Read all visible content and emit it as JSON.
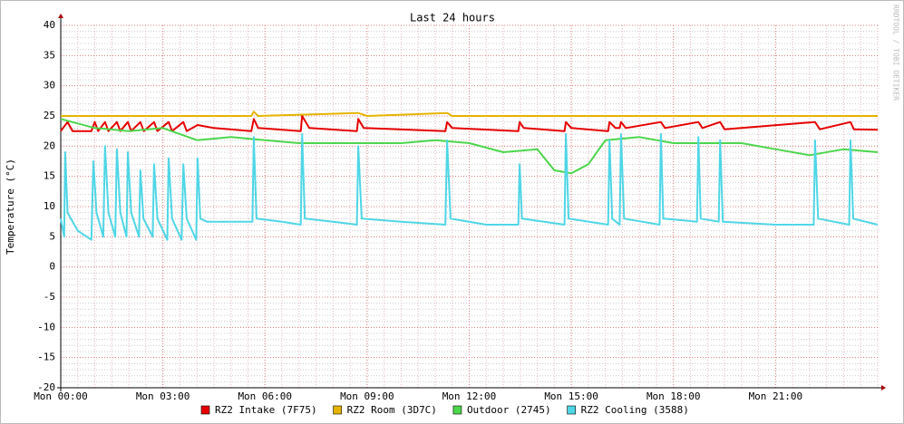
{
  "chart_data": {
    "type": "line",
    "title": "Last 24 hours",
    "y_label": "Temperature (°C)",
    "watermark": "RRDTOOL / TOBI OETIKER",
    "xlim": [
      0,
      24
    ],
    "ylim": [
      -20,
      40
    ],
    "xticks": [
      {
        "value": 0,
        "label": "Mon 00:00"
      },
      {
        "value": 3,
        "label": "Mon 03:00"
      },
      {
        "value": 6,
        "label": "Mon 06:00"
      },
      {
        "value": 9,
        "label": "Mon 09:00"
      },
      {
        "value": 12,
        "label": "Mon 12:00"
      },
      {
        "value": 15,
        "label": "Mon 15:00"
      },
      {
        "value": 18,
        "label": "Mon 18:00"
      },
      {
        "value": 21,
        "label": "Mon 21:00"
      }
    ],
    "yticks": [
      -20,
      -15,
      -10,
      -5,
      0,
      5,
      10,
      15,
      20,
      25,
      30,
      35,
      40
    ],
    "grid": true,
    "series": [
      {
        "name": "RZ2 Intake (7F75)",
        "color": "#e60000",
        "x": [
          0,
          0.2,
          0.35,
          0.9,
          1,
          1.1,
          1.3,
          1.4,
          1.65,
          1.75,
          1.97,
          2.07,
          2.34,
          2.44,
          2.74,
          2.84,
          3.17,
          3.27,
          3.6,
          3.7,
          4.02,
          4.5,
          5.6,
          5.67,
          5.8,
          7.05,
          7.09,
          7.3,
          8.7,
          8.74,
          8.9,
          11.3,
          11.35,
          11.5,
          13.44,
          13.48,
          13.6,
          14.8,
          14.84,
          15,
          16.08,
          16.12,
          16.3,
          16.42,
          16.46,
          16.6,
          17.63,
          17.75,
          18.73,
          18.85,
          19.37,
          19.5,
          22.16,
          22.3,
          23.2,
          23.3,
          24
        ],
        "values": [
          22.5,
          24,
          22.5,
          22.5,
          24,
          22.5,
          24,
          22.5,
          24,
          22.5,
          24,
          22.5,
          24,
          22.5,
          24,
          22.5,
          24,
          22.5,
          24,
          22.5,
          23.5,
          23,
          22.5,
          24.5,
          23,
          22.5,
          25,
          23,
          22.5,
          24.5,
          23,
          22.5,
          24,
          23,
          22.5,
          24,
          23,
          22.5,
          24,
          23,
          22.5,
          24,
          23,
          23,
          24,
          23,
          24,
          23,
          24,
          23,
          24,
          22.8,
          24,
          22.8,
          24,
          22.8,
          22.7
        ]
      },
      {
        "name": "RZ2 Room (3D7C)",
        "color": "#e6b400",
        "x": [
          0,
          4,
          5.6,
          5.67,
          5.8,
          8.74,
          9,
          11.35,
          11.5,
          24
        ],
        "values": [
          25,
          25,
          25,
          25.7,
          25,
          25.5,
          25,
          25.5,
          25,
          25
        ]
      },
      {
        "name": "Outdoor (2745)",
        "color": "#4cd64c",
        "x": [
          0,
          1,
          2,
          3,
          4,
          5,
          6,
          7,
          8,
          9,
          10,
          11,
          12,
          13,
          14,
          14.5,
          15,
          15.5,
          16,
          17,
          18,
          19,
          20,
          21,
          22,
          23,
          24
        ],
        "values": [
          24.5,
          23,
          22.5,
          23,
          21,
          21.5,
          21,
          20.5,
          20.5,
          20.5,
          20.5,
          21,
          20.5,
          19,
          19.5,
          16,
          15.5,
          17,
          21,
          21.5,
          20.5,
          20.5,
          20.5,
          19.5,
          18.5,
          19.5,
          19
        ]
      },
      {
        "name": "RZ2 Cooling (3588)",
        "color": "#4fd6e6",
        "x": [
          0,
          0.1,
          0.13,
          0.2,
          0.5,
          0.9,
          0.96,
          1.05,
          1.25,
          1.3,
          1.4,
          1.6,
          1.65,
          1.75,
          1.93,
          1.97,
          2.07,
          2.3,
          2.34,
          2.43,
          2.7,
          2.74,
          2.84,
          3.13,
          3.17,
          3.27,
          3.55,
          3.6,
          3.7,
          3.98,
          4.02,
          4.1,
          4.3,
          5,
          5.63,
          5.67,
          5.75,
          6.5,
          7.05,
          7.09,
          7.17,
          8,
          8.7,
          8.74,
          8.84,
          10,
          11.3,
          11.35,
          11.45,
          12.5,
          13.44,
          13.48,
          13.55,
          14.8,
          14.84,
          14.92,
          16.08,
          16.12,
          16.2,
          16.42,
          16.46,
          16.55,
          17.59,
          17.63,
          17.7,
          18.69,
          18.73,
          18.8,
          19.33,
          19.37,
          19.45,
          21,
          22.12,
          22.16,
          22.25,
          23.16,
          23.2,
          23.28,
          24
        ],
        "values": [
          8,
          5,
          19,
          9,
          6,
          4.5,
          17.5,
          9,
          5,
          20,
          9,
          5,
          19.5,
          9,
          5,
          19,
          9,
          5,
          16,
          8,
          5,
          17,
          8,
          4.5,
          18,
          8,
          4.5,
          17,
          8,
          4.5,
          18,
          8,
          7.5,
          7.5,
          7.5,
          21.5,
          8,
          7.5,
          7,
          22,
          8,
          7.5,
          7,
          20,
          8,
          7.5,
          7,
          21,
          8,
          7,
          7,
          17,
          8,
          7,
          22,
          8,
          7,
          21,
          8,
          7,
          22,
          8,
          7,
          22,
          8,
          7.5,
          21.5,
          8,
          7.5,
          21,
          7.5,
          7,
          7,
          21,
          8,
          7,
          21,
          8,
          7
        ]
      }
    ]
  }
}
